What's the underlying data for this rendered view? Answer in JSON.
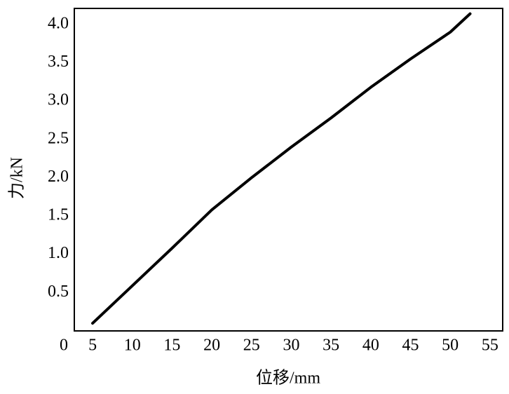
{
  "chart_data": {
    "type": "line",
    "xlabel": "位移/mm",
    "ylabel": "力/kN",
    "x": [
      5,
      10,
      15,
      20,
      25,
      30,
      35,
      40,
      45,
      50,
      52.5
    ],
    "series": [
      {
        "color": "#000000",
        "values": [
          0.1,
          0.59,
          1.08,
          1.58,
          2.0,
          2.4,
          2.78,
          3.18,
          3.55,
          3.9,
          4.14
        ]
      }
    ],
    "xlim": [
      2.7,
      56.6
    ],
    "ylim": [
      0,
      4.21
    ],
    "xticks": [
      0,
      5,
      10,
      15,
      20,
      25,
      30,
      35,
      40,
      45,
      50,
      55
    ],
    "yticks": [
      {
        "value": 0.5,
        "label": "0.5"
      },
      {
        "value": 1.0,
        "label": "1.0"
      },
      {
        "value": 1.5,
        "label": "1.5"
      },
      {
        "value": 2.0,
        "label": "2.0"
      },
      {
        "value": 2.5,
        "label": "2.5"
      },
      {
        "value": 3.0,
        "label": "3.0"
      },
      {
        "value": 3.5,
        "label": "3.5"
      },
      {
        "value": 4.0,
        "label": "4.0"
      }
    ],
    "grid": false
  }
}
